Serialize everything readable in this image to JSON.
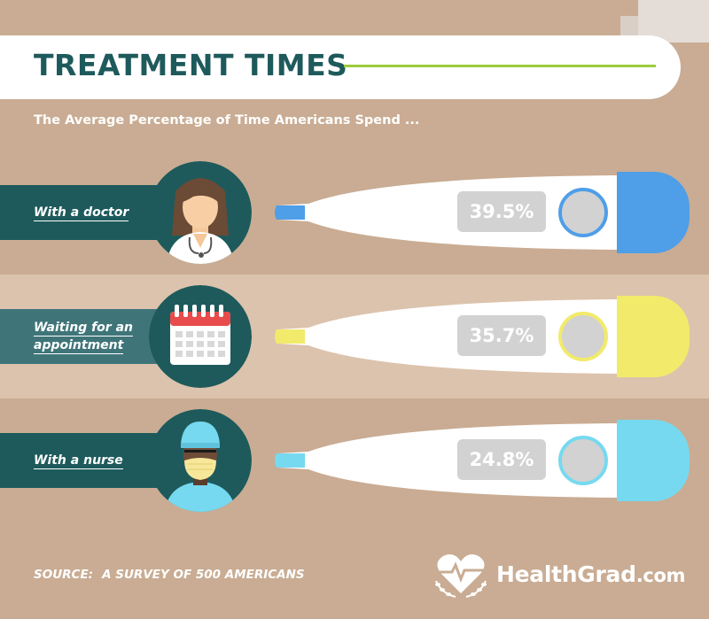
{
  "header": {
    "title": "TREATMENT TIMES",
    "subtitle": "The Average Percentage of Time Americans Spend ..."
  },
  "rows": [
    {
      "label": "With a doctor",
      "percent_text": "39.5%",
      "value": 39.5,
      "icon": "doctor-icon",
      "accent": "#4f9ee8"
    },
    {
      "label": "Waiting for an appointment",
      "percent_text": "35.7%",
      "value": 35.7,
      "icon": "calendar-icon",
      "accent": "#f2ea6b"
    },
    {
      "label": "With a nurse",
      "percent_text": "24.8%",
      "value": 24.8,
      "icon": "nurse-icon",
      "accent": "#76d9ef"
    }
  ],
  "footer": {
    "source_label": "SOURCE:",
    "source_text": "A SURVEY OF 500 AMERICANS",
    "brand_name": "HealthGrad",
    "brand_domain": ".com",
    "brand_logo_icon": "heart-laurel-icon"
  },
  "colors": {
    "teal": "#1e5a5c",
    "green_rule": "#9ccc3c",
    "background": "#c9ac93"
  }
}
